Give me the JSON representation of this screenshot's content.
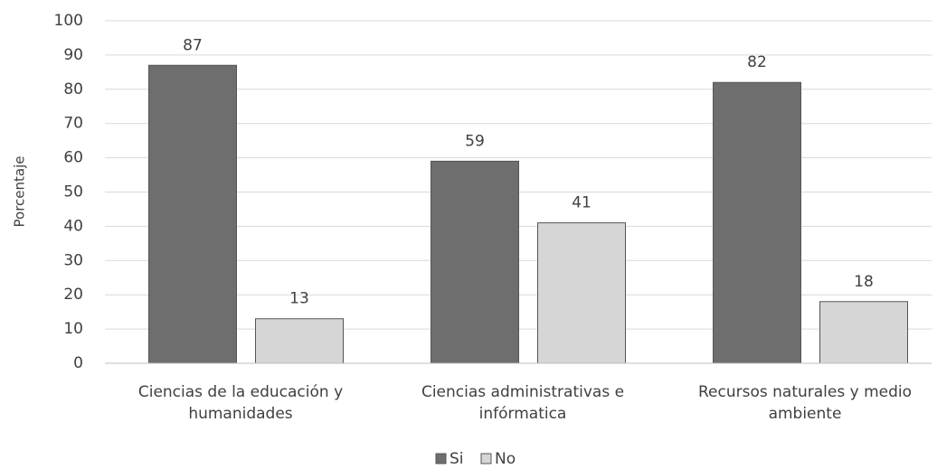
{
  "chart_data": {
    "type": "bar",
    "ylabel": "Porcentaje",
    "categories": [
      "Ciencias de la educación y humanidades",
      "Ciencias administrativas e infórmatica",
      "Recursos naturales y medio ambiente"
    ],
    "series": [
      {
        "name": "Si",
        "color": "#6e6e6e",
        "values": [
          87,
          59,
          82
        ]
      },
      {
        "name": "No",
        "color": "#d6d6d6",
        "values": [
          13,
          41,
          18
        ]
      }
    ],
    "ylim": [
      0,
      100
    ],
    "yticks": [
      0,
      10,
      20,
      30,
      40,
      50,
      60,
      70,
      80,
      90,
      100
    ],
    "grid": true,
    "legend": "bottom"
  }
}
